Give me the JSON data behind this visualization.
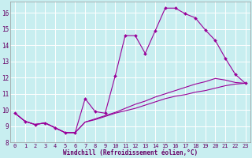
{
  "xlabel": "Windchill (Refroidissement éolien,°C)",
  "bg_color": "#c8eef0",
  "line_color": "#990099",
  "grid_color": "#ffffff",
  "xlim": [
    -0.5,
    23.5
  ],
  "ylim": [
    8,
    16.7
  ],
  "xticks": [
    0,
    1,
    2,
    3,
    4,
    5,
    6,
    7,
    8,
    9,
    10,
    11,
    12,
    13,
    14,
    15,
    16,
    17,
    18,
    19,
    20,
    21,
    22,
    23
  ],
  "yticks": [
    8,
    9,
    10,
    11,
    12,
    13,
    14,
    15,
    16
  ],
  "series": [
    {
      "x": [
        0,
        1,
        2,
        3,
        4,
        5,
        6,
        7,
        8,
        9,
        10,
        11,
        12,
        13,
        14,
        15,
        16,
        17,
        18,
        19,
        20,
        21,
        22,
        23
      ],
      "y": [
        9.8,
        9.3,
        9.1,
        9.2,
        8.9,
        8.6,
        8.6,
        10.7,
        9.9,
        9.8,
        12.1,
        14.6,
        14.6,
        13.5,
        14.9,
        16.3,
        16.3,
        15.95,
        15.7,
        14.95,
        14.3,
        13.2,
        12.2,
        11.65
      ],
      "has_markers": true
    },
    {
      "x": [
        0,
        1,
        2,
        3,
        4,
        5,
        6,
        7,
        8,
        9,
        10,
        11,
        12,
        13,
        14,
        15,
        16,
        17,
        18,
        19,
        20,
        21,
        22,
        23
      ],
      "y": [
        9.8,
        9.3,
        9.1,
        9.2,
        8.9,
        8.6,
        8.6,
        9.25,
        9.45,
        9.65,
        9.85,
        10.1,
        10.35,
        10.55,
        10.8,
        11.0,
        11.2,
        11.4,
        11.6,
        11.75,
        11.95,
        11.85,
        11.7,
        11.65
      ],
      "has_markers": false
    },
    {
      "x": [
        0,
        1,
        2,
        3,
        4,
        5,
        6,
        7,
        8,
        9,
        10,
        11,
        12,
        13,
        14,
        15,
        16,
        17,
        18,
        19,
        20,
        21,
        22,
        23
      ],
      "y": [
        9.8,
        9.3,
        9.1,
        9.2,
        8.9,
        8.6,
        8.6,
        9.25,
        9.4,
        9.6,
        9.8,
        9.95,
        10.1,
        10.3,
        10.5,
        10.7,
        10.85,
        10.95,
        11.1,
        11.2,
        11.35,
        11.5,
        11.6,
        11.65
      ],
      "has_markers": false
    }
  ]
}
